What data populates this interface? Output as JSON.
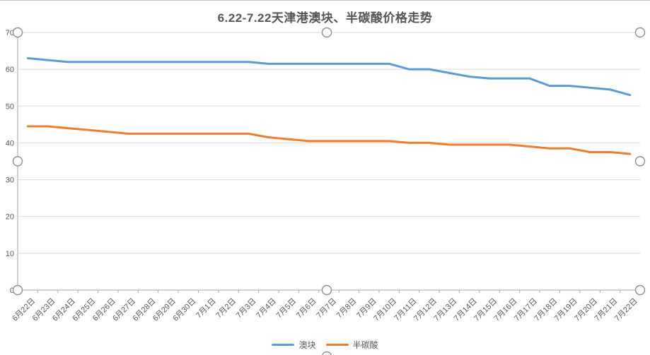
{
  "chart_data": {
    "type": "line",
    "title": "6.22-7.22天津港澳块、半碳酸价格走势",
    "categories": [
      "6月22日",
      "6月23日",
      "6月24日",
      "6月25日",
      "6月26日",
      "6月27日",
      "6月28日",
      "6月29日",
      "6月30日",
      "7月1日",
      "7月2日",
      "7月3日",
      "7月4日",
      "7月5日",
      "7月6日",
      "7月7日",
      "7月8日",
      "7月9日",
      "7月10日",
      "7月11日",
      "7月12日",
      "7月13日",
      "7月14日",
      "7月15日",
      "7月16日",
      "7月17日",
      "7月18日",
      "7月19日",
      "7月20日",
      "7月21日",
      "7月22日"
    ],
    "series": [
      {
        "name": "澳块",
        "color": "#5B9BD5",
        "values": [
          63,
          62.5,
          62,
          62,
          62,
          62,
          62,
          62,
          62,
          62,
          62,
          62,
          61.5,
          61.5,
          61.5,
          61.5,
          61.5,
          61.5,
          61.5,
          60,
          60,
          59,
          58,
          57.5,
          57.5,
          57.5,
          55.5,
          55.5,
          55,
          54.5,
          53
        ]
      },
      {
        "name": "半碳酸",
        "color": "#ED7D31",
        "values": [
          44.5,
          44.5,
          44,
          43.5,
          43,
          42.5,
          42.5,
          42.5,
          42.5,
          42.5,
          42.5,
          42.5,
          41.5,
          41,
          40.5,
          40.5,
          40.5,
          40.5,
          40.5,
          40,
          40,
          39.5,
          39.5,
          39.5,
          39.5,
          39,
          38.5,
          38.5,
          37.5,
          37.5,
          37
        ]
      }
    ],
    "ylim": [
      0,
      70
    ],
    "y_tick_step": 10,
    "y_ticks": [
      "0",
      "10",
      "20",
      "30",
      "40",
      "50",
      "60",
      "70"
    ],
    "grid": true,
    "legend_position": "bottom",
    "xlabel": "",
    "ylabel": ""
  },
  "styles": {
    "grid_color": "#D9D9D9",
    "axis_color": "#A6A6A6",
    "text_color": "#595959",
    "handle_fill": "#FFFFFF",
    "handle_stroke": "#8E8E8E",
    "background": "#FFFFFF"
  },
  "selection": {
    "handles_visible": true
  }
}
